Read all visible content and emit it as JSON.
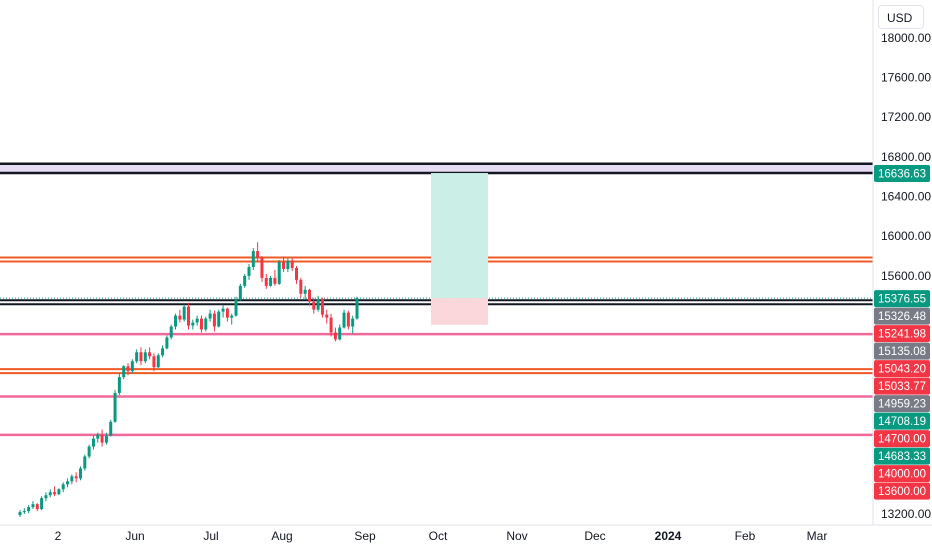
{
  "currency": {
    "label": "USD"
  },
  "chart_data": {
    "type": "candlestick",
    "y_axis": {
      "range": [
        13120,
        18300
      ],
      "ticks": [
        "18000.00",
        "17600.00",
        "17200.00",
        "16800.00",
        "16400.00",
        "16000.00",
        "15600.00",
        "13200.00"
      ]
    },
    "x_axis": {
      "ticks": [
        "2",
        "Jun",
        "Jul",
        "Aug",
        "Sep",
        "Oct",
        "Nov",
        "Dec",
        "2024",
        "Feb",
        "Mar"
      ],
      "bold_ticks": [
        "2024"
      ]
    },
    "price_badges": [
      {
        "label": "16636.63",
        "value": 16636.63,
        "color": "#089981"
      },
      {
        "label": "15376.55",
        "value": 15376.55,
        "color": "#089981"
      },
      {
        "label": "15326.48",
        "value": 15326.48,
        "color": "#787b86"
      },
      {
        "label": "15241.98",
        "value": 15241.98,
        "color": "#f23645"
      },
      {
        "label": "15135.08",
        "value": 15135.08,
        "color": "#787b86"
      },
      {
        "label": "15043.20",
        "value": 15043.2,
        "color": "#f23645"
      },
      {
        "label": "15033.77",
        "value": 15033.77,
        "color": "#f23645"
      },
      {
        "label": "14959.23",
        "value": 14959.23,
        "color": "#787b86"
      },
      {
        "label": "14708.19",
        "value": 14708.19,
        "color": "#089981"
      },
      {
        "label": "14700.00",
        "value": 14700.0,
        "color": "#f23645"
      },
      {
        "label": "14683.33",
        "value": 14683.33,
        "color": "#089981"
      },
      {
        "label": "14000.00",
        "value": 14000.0,
        "color": "#f23645"
      },
      {
        "label": "13600.00",
        "value": 13600.0,
        "color": "#f23645"
      }
    ],
    "horizontal_levels": [
      {
        "kind": "band",
        "top": 16730,
        "bottom": 16636.63,
        "fill": "#e6dcf3",
        "border": "#131722"
      },
      {
        "kind": "double-line",
        "value": 15765,
        "color": "#f05a24"
      },
      {
        "kind": "double-line",
        "value": 15335,
        "color": "#131722"
      },
      {
        "kind": "line",
        "value": 15013,
        "color": "#f0689a"
      },
      {
        "kind": "double-line",
        "value": 14640,
        "color": "#f05a24"
      },
      {
        "kind": "line",
        "value": 14385,
        "color": "#f0689a"
      },
      {
        "kind": "line",
        "value": 13998,
        "color": "#f0689a"
      }
    ],
    "last_price_line": {
      "value": 15376.55,
      "color": "#089981"
    },
    "position_tool": {
      "entry": 15376.55,
      "target": 16636.63,
      "stop": 15108,
      "start_label": "Oct",
      "end_label": "Nov",
      "profit_color": "#cbeee6",
      "loss_color": "#fbd6da"
    },
    "candles": [
      [
        13190,
        13240,
        13170,
        13220
      ],
      [
        13220,
        13260,
        13200,
        13230
      ],
      [
        13230,
        13290,
        13210,
        13270
      ],
      [
        13270,
        13330,
        13250,
        13300
      ],
      [
        13300,
        13310,
        13230,
        13250
      ],
      [
        13250,
        13380,
        13240,
        13360
      ],
      [
        13360,
        13420,
        13330,
        13390
      ],
      [
        13390,
        13450,
        13370,
        13420
      ],
      [
        13420,
        13480,
        13380,
        13400
      ],
      [
        13400,
        13460,
        13390,
        13450
      ],
      [
        13450,
        13520,
        13420,
        13500
      ],
      [
        13500,
        13560,
        13470,
        13530
      ],
      [
        13530,
        13600,
        13500,
        13580
      ],
      [
        13580,
        13620,
        13520,
        13560
      ],
      [
        13560,
        13680,
        13540,
        13660
      ],
      [
        13660,
        13800,
        13640,
        13780
      ],
      [
        13780,
        13900,
        13760,
        13880
      ],
      [
        13880,
        13990,
        13850,
        13960
      ],
      [
        13960,
        14020,
        13920,
        14000
      ],
      [
        14000,
        14050,
        13880,
        13920
      ],
      [
        13920,
        14020,
        13900,
        13990
      ],
      [
        13990,
        14150,
        13980,
        14130
      ],
      [
        14130,
        14450,
        14120,
        14420
      ],
      [
        14420,
        14620,
        14400,
        14580
      ],
      [
        14580,
        14700,
        14560,
        14690
      ],
      [
        14690,
        14720,
        14600,
        14640
      ],
      [
        14640,
        14760,
        14620,
        14740
      ],
      [
        14740,
        14860,
        14720,
        14830
      ],
      [
        14830,
        14880,
        14700,
        14740
      ],
      [
        14740,
        14860,
        14720,
        14830
      ],
      [
        14830,
        14880,
        14760,
        14790
      ],
      [
        14790,
        14820,
        14640,
        14680
      ],
      [
        14680,
        14820,
        14670,
        14800
      ],
      [
        14800,
        14900,
        14780,
        14870
      ],
      [
        14870,
        15000,
        14860,
        14980
      ],
      [
        14980,
        15110,
        14960,
        15090
      ],
      [
        15090,
        15220,
        15060,
        15200
      ],
      [
        15200,
        15260,
        15130,
        15160
      ],
      [
        15160,
        15310,
        15140,
        15290
      ],
      [
        15290,
        15330,
        15060,
        15100
      ],
      [
        15100,
        15160,
        15060,
        15130
      ],
      [
        15130,
        15200,
        15100,
        15170
      ],
      [
        15170,
        15200,
        15030,
        15060
      ],
      [
        15060,
        15190,
        15040,
        15170
      ],
      [
        15170,
        15260,
        15140,
        15220
      ],
      [
        15220,
        15250,
        15040,
        15090
      ],
      [
        15090,
        15260,
        15080,
        15240
      ],
      [
        15240,
        15310,
        15180,
        15270
      ],
      [
        15270,
        15280,
        15140,
        15180
      ],
      [
        15180,
        15220,
        15110,
        15200
      ],
      [
        15200,
        15390,
        15190,
        15360
      ],
      [
        15360,
        15520,
        15350,
        15500
      ],
      [
        15500,
        15620,
        15480,
        15600
      ],
      [
        15600,
        15720,
        15560,
        15690
      ],
      [
        15690,
        15880,
        15660,
        15850
      ],
      [
        15850,
        15940,
        15740,
        15780
      ],
      [
        15780,
        15800,
        15540,
        15580
      ],
      [
        15580,
        15620,
        15470,
        15500
      ],
      [
        15500,
        15600,
        15490,
        15580
      ],
      [
        15580,
        15660,
        15500,
        15520
      ],
      [
        15520,
        15760,
        15510,
        15740
      ],
      [
        15740,
        15790,
        15640,
        15670
      ],
      [
        15670,
        15780,
        15640,
        15750
      ],
      [
        15750,
        15780,
        15650,
        15680
      ],
      [
        15680,
        15700,
        15520,
        15560
      ],
      [
        15560,
        15580,
        15380,
        15420
      ],
      [
        15420,
        15500,
        15360,
        15460
      ],
      [
        15460,
        15470,
        15300,
        15340
      ],
      [
        15340,
        15380,
        15220,
        15260
      ],
      [
        15260,
        15400,
        15240,
        15360
      ],
      [
        15360,
        15380,
        15180,
        15210
      ],
      [
        15210,
        15260,
        15120,
        15180
      ],
      [
        15180,
        15220,
        14990,
        15030
      ],
      [
        15030,
        15080,
        14940,
        14960
      ],
      [
        14960,
        15110,
        14950,
        15080
      ],
      [
        15080,
        15260,
        15070,
        15230
      ],
      [
        15230,
        15250,
        15060,
        15090
      ],
      [
        15090,
        15200,
        15020,
        15170
      ],
      [
        15170,
        15390,
        15160,
        15376.55
      ]
    ]
  }
}
